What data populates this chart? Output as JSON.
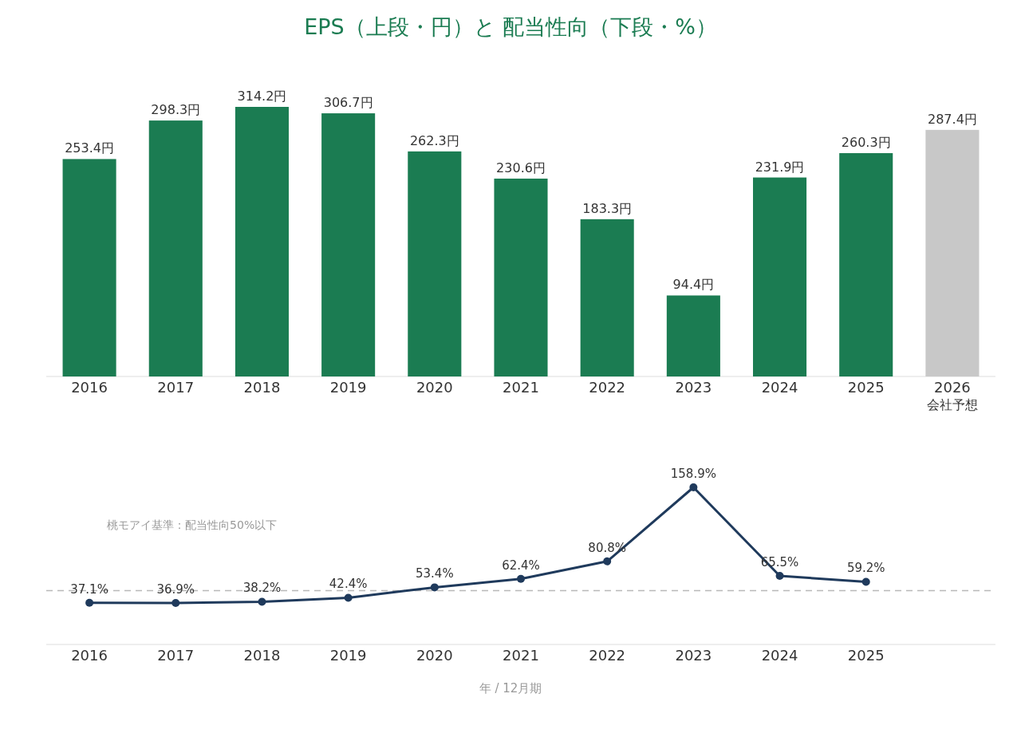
{
  "chart_data": [
    {
      "type": "bar",
      "title": "EPS（上段・円）と 配当性向（下段・%）",
      "categories": [
        "2016",
        "2017",
        "2018",
        "2019",
        "2020",
        "2021",
        "2022",
        "2023",
        "2024",
        "2025",
        "2026\n会社予想"
      ],
      "values": [
        253.4,
        298.3,
        314.2,
        306.7,
        262.3,
        230.6,
        183.3,
        94.4,
        231.9,
        260.3,
        287.4
      ],
      "colors": [
        "#1b7c52",
        "#1b7c52",
        "#1b7c52",
        "#1b7c52",
        "#1b7c52",
        "#1b7c52",
        "#1b7c52",
        "#1b7c52",
        "#1b7c52",
        "#1b7c52",
        "#c8c8c8"
      ],
      "value_labels": [
        "253.4円",
        "298.3円",
        "314.2円",
        "306.7円",
        "262.3円",
        "230.6円",
        "183.3円",
        "94.4円",
        "231.9円",
        "260.3円",
        "287.4円"
      ]
    },
    {
      "type": "line",
      "categories": [
        "2016",
        "2017",
        "2018",
        "2019",
        "2020",
        "2021",
        "2022",
        "2023",
        "2024",
        "2025",
        null
      ],
      "series": [
        {
          "color": "#1f3a5c",
          "values": [
            37.1,
            36.9,
            38.2,
            42.4,
            53.4,
            62.4,
            80.8,
            158.9,
            65.5,
            59.2,
            null
          ],
          "value_labels": [
            "37.1%",
            "36.9%",
            "38.2%",
            "42.4%",
            "53.4%",
            "62.4%",
            "80.8%",
            "158.9%",
            "65.5%",
            "59.2%",
            null
          ]
        }
      ],
      "marker": "circle",
      "line_style": "solid",
      "ref_lines": [
        {
          "axis": "y",
          "value": 50,
          "label": "桃モアイ基準：配当性向50%以下",
          "color": "#b8b8b8",
          "line_style": "dashed"
        }
      ],
      "xlabel": "年 / 12月期"
    }
  ]
}
